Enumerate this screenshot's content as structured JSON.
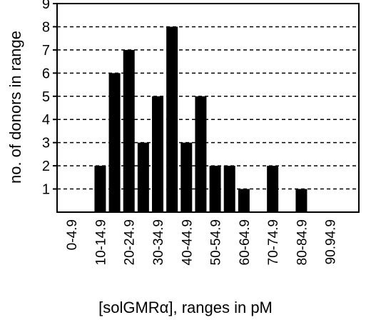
{
  "chart_data": {
    "type": "bar",
    "title": "",
    "xlabel": "[solGMRα], ranges in pM",
    "ylabel": "no. of donors in range",
    "ylim": [
      0,
      9
    ],
    "yticks": [
      "1",
      "2",
      "3",
      "4",
      "5",
      "6",
      "7",
      "8",
      "9"
    ],
    "grid": "horizontal dashed",
    "legend": "none",
    "colors": {
      "bar": "#000000",
      "grid": "#000000"
    },
    "categories": [
      "0-4.9",
      "10-14.9",
      "20-24.9",
      "30-34.9",
      "40-44.9",
      "50-54.9",
      "60-64.9",
      "70-74.9",
      "80-84.9",
      "90.94.9"
    ],
    "bars": [
      {
        "x": 10,
        "value": 2
      },
      {
        "x": 15,
        "value": 6
      },
      {
        "x": 20,
        "value": 7
      },
      {
        "x": 25,
        "value": 3
      },
      {
        "x": 30,
        "value": 5
      },
      {
        "x": 35,
        "value": 8
      },
      {
        "x": 40,
        "value": 3
      },
      {
        "x": 45,
        "value": 5
      },
      {
        "x": 50,
        "value": 2
      },
      {
        "x": 55,
        "value": 2
      },
      {
        "x": 60,
        "value": 1
      },
      {
        "x": 70,
        "value": 2
      },
      {
        "x": 80,
        "value": 1
      }
    ],
    "category_x": [
      0,
      10,
      20,
      30,
      40,
      50,
      60,
      70,
      80,
      90
    ]
  }
}
